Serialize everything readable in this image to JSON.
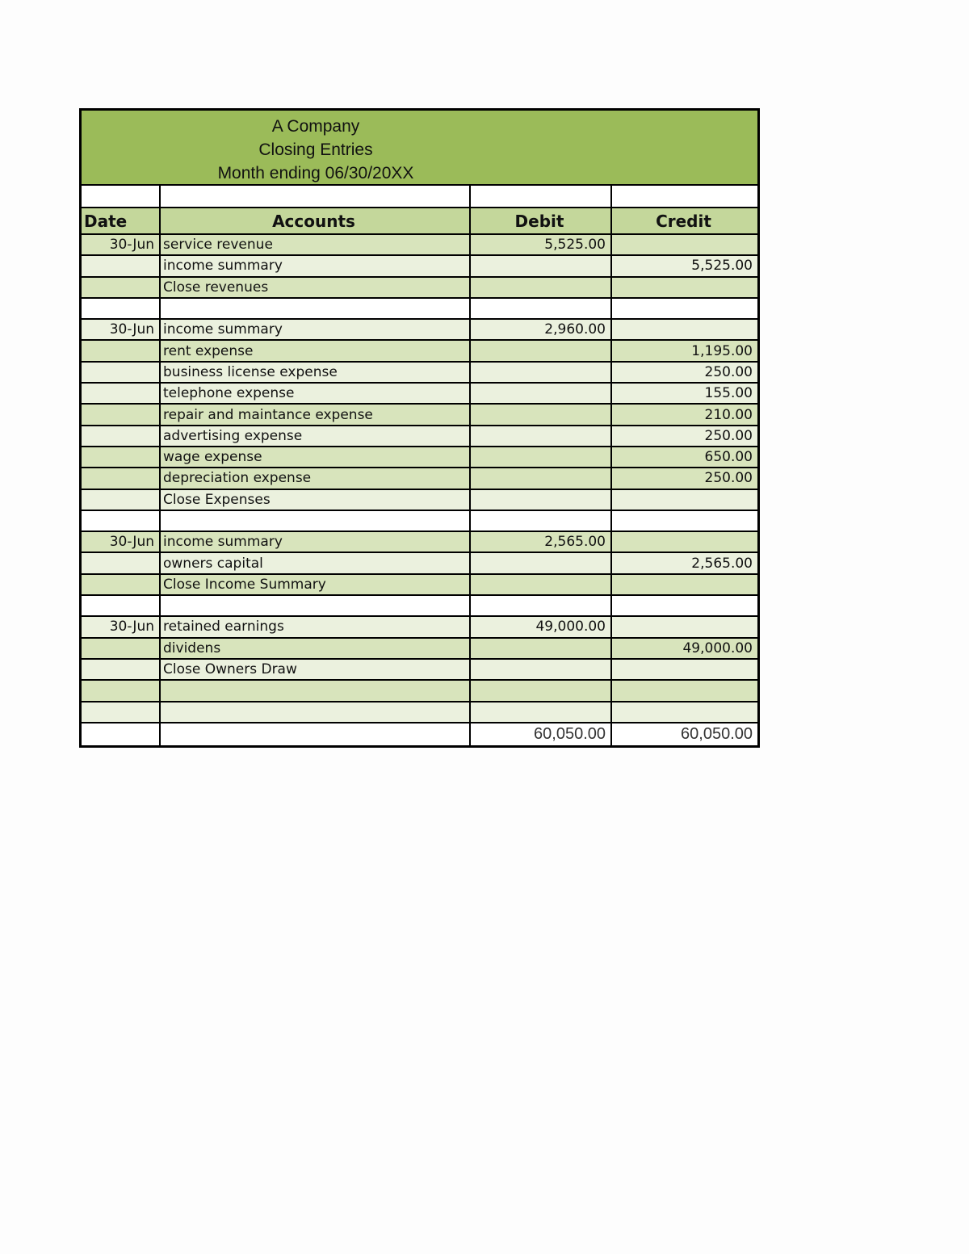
{
  "header": {
    "company": "A Company",
    "title": "Closing Entries",
    "period": "Month ending 06/30/20XX"
  },
  "columns": {
    "date": "Date",
    "accounts": "Accounts",
    "debit": "Debit",
    "credit": "Credit"
  },
  "colors": {
    "title_bg": "#9BBB59",
    "header_bg": "#C4D79B",
    "dark_band": "#D8E4BC",
    "light_band": "#EBF1DE"
  },
  "rows": [
    {
      "shade": "dark",
      "date": "30-Jun",
      "account": "service revenue",
      "debit": "5,525.00",
      "credit": ""
    },
    {
      "shade": "light",
      "date": "",
      "account": "income summary",
      "debit": "",
      "credit": "5,525.00"
    },
    {
      "shade": "dark",
      "date": "",
      "account": "Close revenues",
      "debit": "",
      "credit": ""
    },
    {
      "shade": "white",
      "date": "",
      "account": "",
      "debit": "",
      "credit": ""
    },
    {
      "shade": "light",
      "date": "30-Jun",
      "account": "income summary",
      "debit": "2,960.00",
      "credit": ""
    },
    {
      "shade": "dark",
      "date": "",
      "account": "rent expense",
      "debit": "",
      "credit": "1,195.00"
    },
    {
      "shade": "light",
      "date": "",
      "account": "business license expense",
      "debit": "",
      "credit": "250.00"
    },
    {
      "shade": "light",
      "date": "",
      "account": "telephone expense",
      "debit": "",
      "credit": "155.00"
    },
    {
      "shade": "dark",
      "date": "",
      "account": "repair and maintance expense",
      "debit": "",
      "credit": "210.00"
    },
    {
      "shade": "light",
      "date": "",
      "account": "advertising expense",
      "debit": "",
      "credit": "250.00"
    },
    {
      "shade": "dark",
      "date": "",
      "account": "wage expense",
      "debit": "",
      "credit": "650.00"
    },
    {
      "shade": "dark",
      "date": "",
      "account": "depreciation expense",
      "debit": "",
      "credit": "250.00"
    },
    {
      "shade": "light",
      "date": "",
      "account": "Close Expenses",
      "debit": "",
      "credit": ""
    },
    {
      "shade": "white",
      "date": "",
      "account": "",
      "debit": "",
      "credit": ""
    },
    {
      "shade": "dark",
      "date": "30-Jun",
      "account": "income summary",
      "debit": "2,565.00",
      "credit": ""
    },
    {
      "shade": "light",
      "date": "",
      "account": "owners capital",
      "debit": "",
      "credit": "2,565.00"
    },
    {
      "shade": "dark",
      "date": "",
      "account": "Close Income Summary",
      "debit": "",
      "credit": ""
    },
    {
      "shade": "white",
      "date": "",
      "account": "",
      "debit": "",
      "credit": ""
    },
    {
      "shade": "light",
      "date": "30-Jun",
      "account": "retained earnings",
      "debit": "49,000.00",
      "credit": ""
    },
    {
      "shade": "dark",
      "date": "",
      "account": "dividens",
      "debit": "",
      "credit": "49,000.00"
    },
    {
      "shade": "light",
      "date": "",
      "account": "Close Owners Draw",
      "debit": "",
      "credit": ""
    },
    {
      "shade": "dark",
      "date": "",
      "account": "",
      "debit": "",
      "credit": ""
    },
    {
      "shade": "light",
      "date": "",
      "account": "",
      "debit": "",
      "credit": ""
    }
  ],
  "totals": {
    "debit": "60,050.00",
    "credit": "60,050.00"
  }
}
